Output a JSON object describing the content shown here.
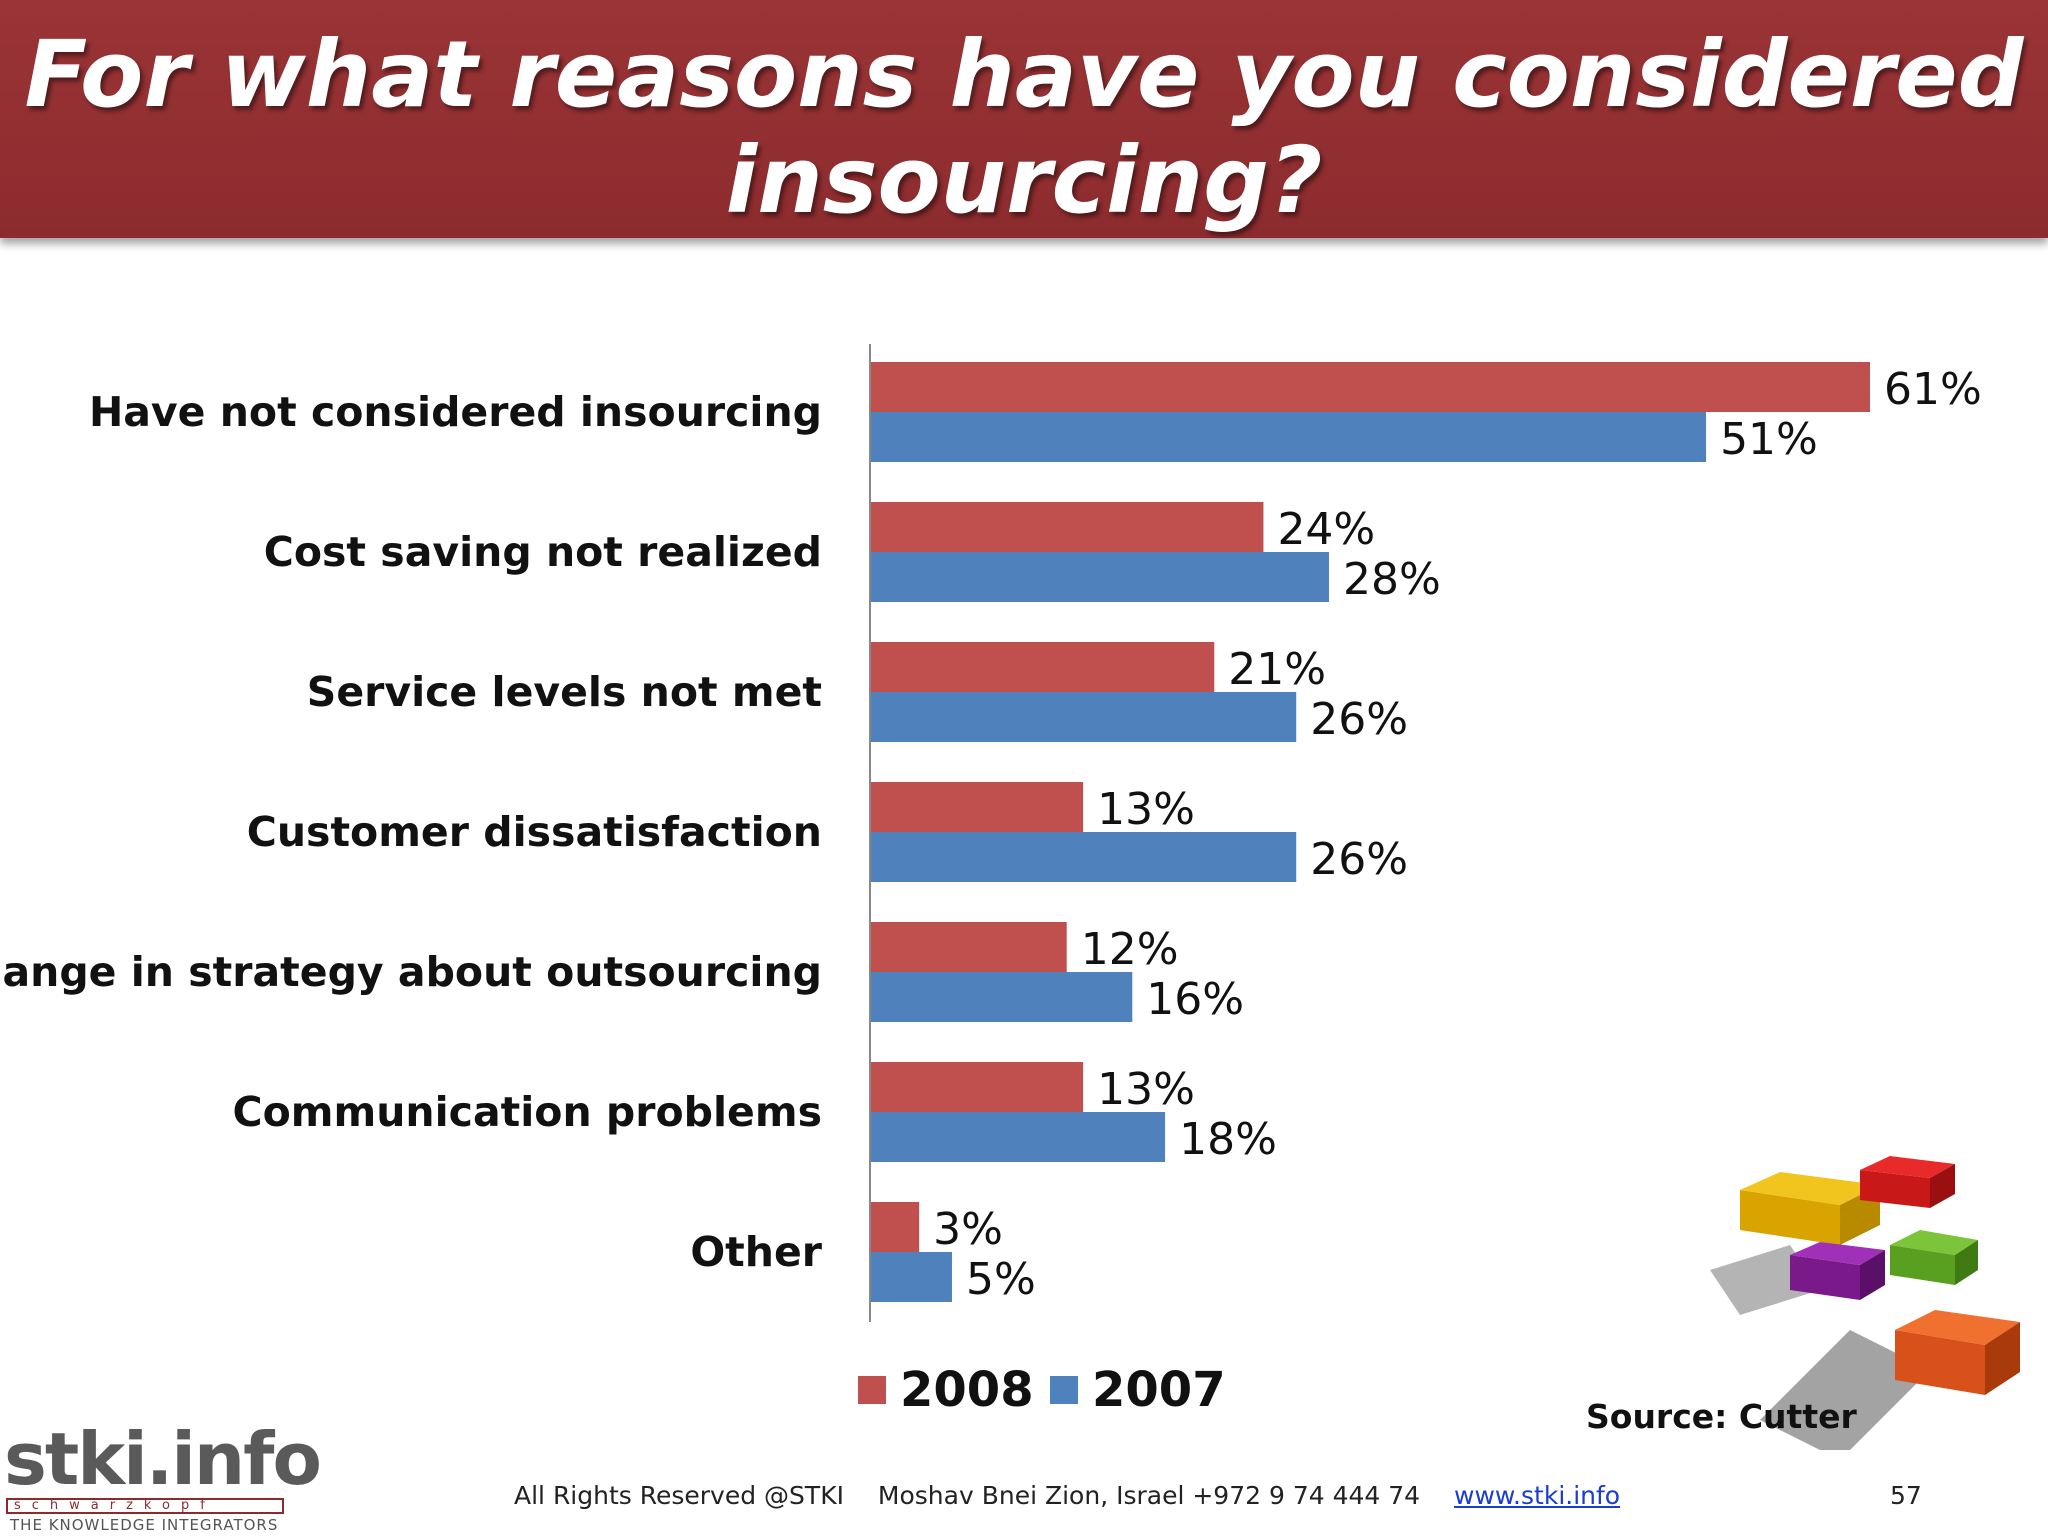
{
  "slide": {
    "title": "For what reasons have you considered insourcing?",
    "source": "Source: Cutter"
  },
  "footer": {
    "rights": "All Rights Reserved @STKI",
    "address": "Moshav Bnei Zion, Israel +972 9 74 444 74",
    "link": "www.stki.info",
    "page_number": "57"
  },
  "logo": {
    "name": "stki.info",
    "strip": "schwarzkopf",
    "tagline": "THE KNOWLEDGE INTEGRATORS"
  },
  "colors": {
    "header": "#8c2b2e",
    "series_2008": "#c0504d",
    "series_2007": "#4f81bd"
  },
  "chart_data": {
    "type": "bar",
    "orientation": "horizontal",
    "title": "For what reasons have you considered insourcing?",
    "categories": [
      "Have not considered insourcing",
      "Cost saving not realized",
      "Service levels not met",
      "Customer dissatisfaction",
      "Change in strategy about outsourcing",
      "Communication problems",
      "Other"
    ],
    "series": [
      {
        "name": "2008",
        "color": "#c0504d",
        "values": [
          61,
          24,
          21,
          13,
          12,
          13,
          3
        ]
      },
      {
        "name": "2007",
        "color": "#4f81bd",
        "values": [
          51,
          28,
          26,
          26,
          16,
          18,
          5
        ]
      }
    ],
    "value_labels": {
      "2008": [
        "61%",
        "24%",
        "21%",
        "13%",
        "12%",
        "13%",
        "3%"
      ],
      "2007": [
        "51%",
        "28%",
        "26%",
        "26%",
        "16%",
        "18%",
        "5%"
      ]
    },
    "xlim": [
      0,
      61
    ],
    "legend": {
      "position": "bottom",
      "labels": [
        "2008",
        "2007"
      ]
    },
    "grid": false
  }
}
